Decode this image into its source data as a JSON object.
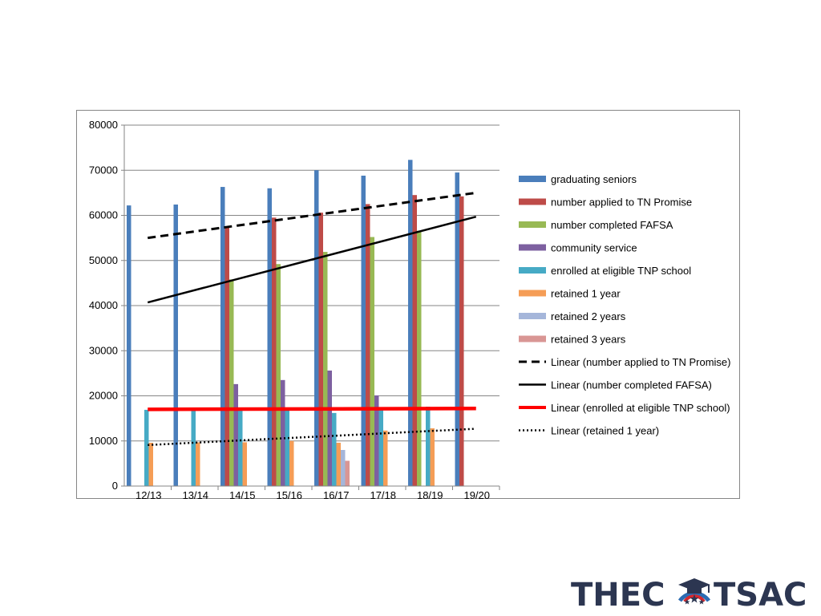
{
  "chart_data": {
    "type": "bar",
    "title": "",
    "xlabel": "",
    "ylabel": "",
    "ylim": [
      0,
      80000
    ],
    "yticks": [
      0,
      10000,
      20000,
      30000,
      40000,
      50000,
      60000,
      70000,
      80000
    ],
    "grid": "horizontal",
    "legend_position": "right",
    "categories": [
      "12/13",
      "13/14",
      "14/15",
      "15/16",
      "16/17",
      "17/18",
      "18/19",
      "19/20"
    ],
    "series": [
      {
        "name": "graduating seniors",
        "color": "#4a7ebb",
        "values": [
          62200,
          62400,
          66300,
          66000,
          70000,
          68800,
          72300,
          69500
        ]
      },
      {
        "name": "number applied to TN Promise",
        "color": "#be4b48",
        "values": [
          null,
          null,
          57600,
          59500,
          60600,
          62500,
          64500,
          64200
        ]
      },
      {
        "name": "number completed FAFSA",
        "color": "#98b954",
        "values": [
          null,
          null,
          45800,
          49200,
          51900,
          55200,
          56600,
          null
        ]
      },
      {
        "name": " community service",
        "color": "#7d60a0",
        "values": [
          null,
          null,
          22600,
          23500,
          25600,
          20100,
          null,
          null
        ]
      },
      {
        "name": "enrolled at eligible TNP school",
        "color": "#46aac5",
        "values": [
          16900,
          16900,
          17000,
          17200,
          16200,
          16800,
          17600,
          null
        ]
      },
      {
        "name": "retained 1 year",
        "color": "#f59d56",
        "values": [
          9600,
          9700,
          9700,
          10000,
          9600,
          12300,
          12800,
          null
        ]
      },
      {
        "name": "retained 2 years",
        "color": "#a5b6da",
        "values": [
          null,
          null,
          null,
          null,
          8000,
          null,
          null,
          null
        ]
      },
      {
        "name": "retained 3 years",
        "color": "#d99694",
        "values": [
          null,
          null,
          null,
          null,
          5600,
          null,
          null,
          null
        ]
      }
    ],
    "trendlines": [
      {
        "name": "Linear (number applied to TN Promise)",
        "style": "dashed",
        "color": "#000000",
        "start": 55000,
        "end": 65000
      },
      {
        "name": "Linear (number completed FAFSA)",
        "style": "solid",
        "color": "#000000",
        "start": 40700,
        "end": 59700
      },
      {
        "name": "Linear (enrolled at eligible TNP school)",
        "style": "solid-thick",
        "color": "#ff0000",
        "start": 17000,
        "end": 17200
      },
      {
        "name": "Linear (retained 1 year)",
        "style": "dotted",
        "color": "#000000",
        "start": 9100,
        "end": 12700
      }
    ]
  },
  "logo": {
    "left_text": "THEC",
    "right_text": "TSAC",
    "icon": "graduation-cap-stars-icon",
    "colors": {
      "text": "#2c3651",
      "blue": "#2b6cb3",
      "red": "#d6282f"
    }
  }
}
